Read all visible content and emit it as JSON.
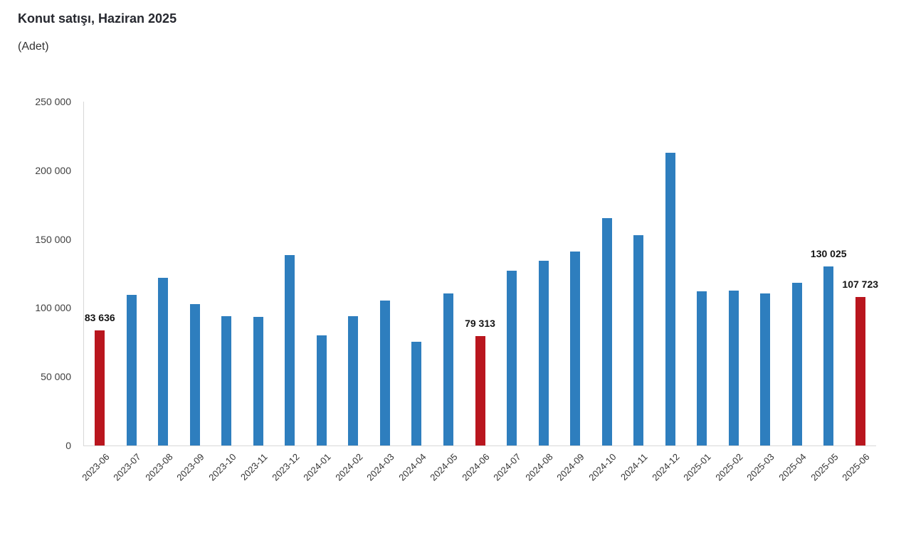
{
  "header": {
    "title": "Konut satışı, Haziran 2025",
    "subtitle": "(Adet)"
  },
  "chart_data": {
    "type": "bar",
    "title": "Konut satışı, Haziran 2025",
    "subtitle": "(Adet)",
    "unit_label": "Adet",
    "categories": [
      "2023-06",
      "2023-07",
      "2023-08",
      "2023-09",
      "2023-10",
      "2023-11",
      "2023-12",
      "2024-01",
      "2024-02",
      "2024-03",
      "2024-04",
      "2024-05",
      "2024-06",
      "2024-07",
      "2024-08",
      "2024-09",
      "2024-10",
      "2024-11",
      "2024-12",
      "2025-01",
      "2025-02",
      "2025-03",
      "2025-04",
      "2025-05",
      "2025-06"
    ],
    "values": [
      83636,
      109548,
      122091,
      102656,
      93761,
      93514,
      138577,
      80308,
      93902,
      105476,
      75569,
      110588,
      79313,
      127088,
      134155,
      140919,
      165138,
      153014,
      212637,
      112173,
      112818,
      110795,
      118359,
      130025,
      107723
    ],
    "highlight_indices": [
      0,
      12,
      24
    ],
    "data_labels": [
      {
        "index": 0,
        "text": "83 636"
      },
      {
        "index": 12,
        "text": "79 313"
      },
      {
        "index": 23,
        "text": "130 025"
      },
      {
        "index": 24,
        "text": "107 723"
      }
    ],
    "ylim": [
      0,
      250000
    ],
    "yticks": [
      0,
      50000,
      100000,
      150000,
      200000,
      250000
    ],
    "ytick_labels": [
      "0",
      "50 000",
      "100 000",
      "150 000",
      "200 000",
      "250 000"
    ],
    "grid": false,
    "legend_visible": false,
    "colors": {
      "bar_default": "#2e7ebe",
      "bar_highlight": "#b9161e",
      "axis_line": "#d8d8d8",
      "title_text": "#26282f",
      "axis_text": "#404040"
    }
  }
}
